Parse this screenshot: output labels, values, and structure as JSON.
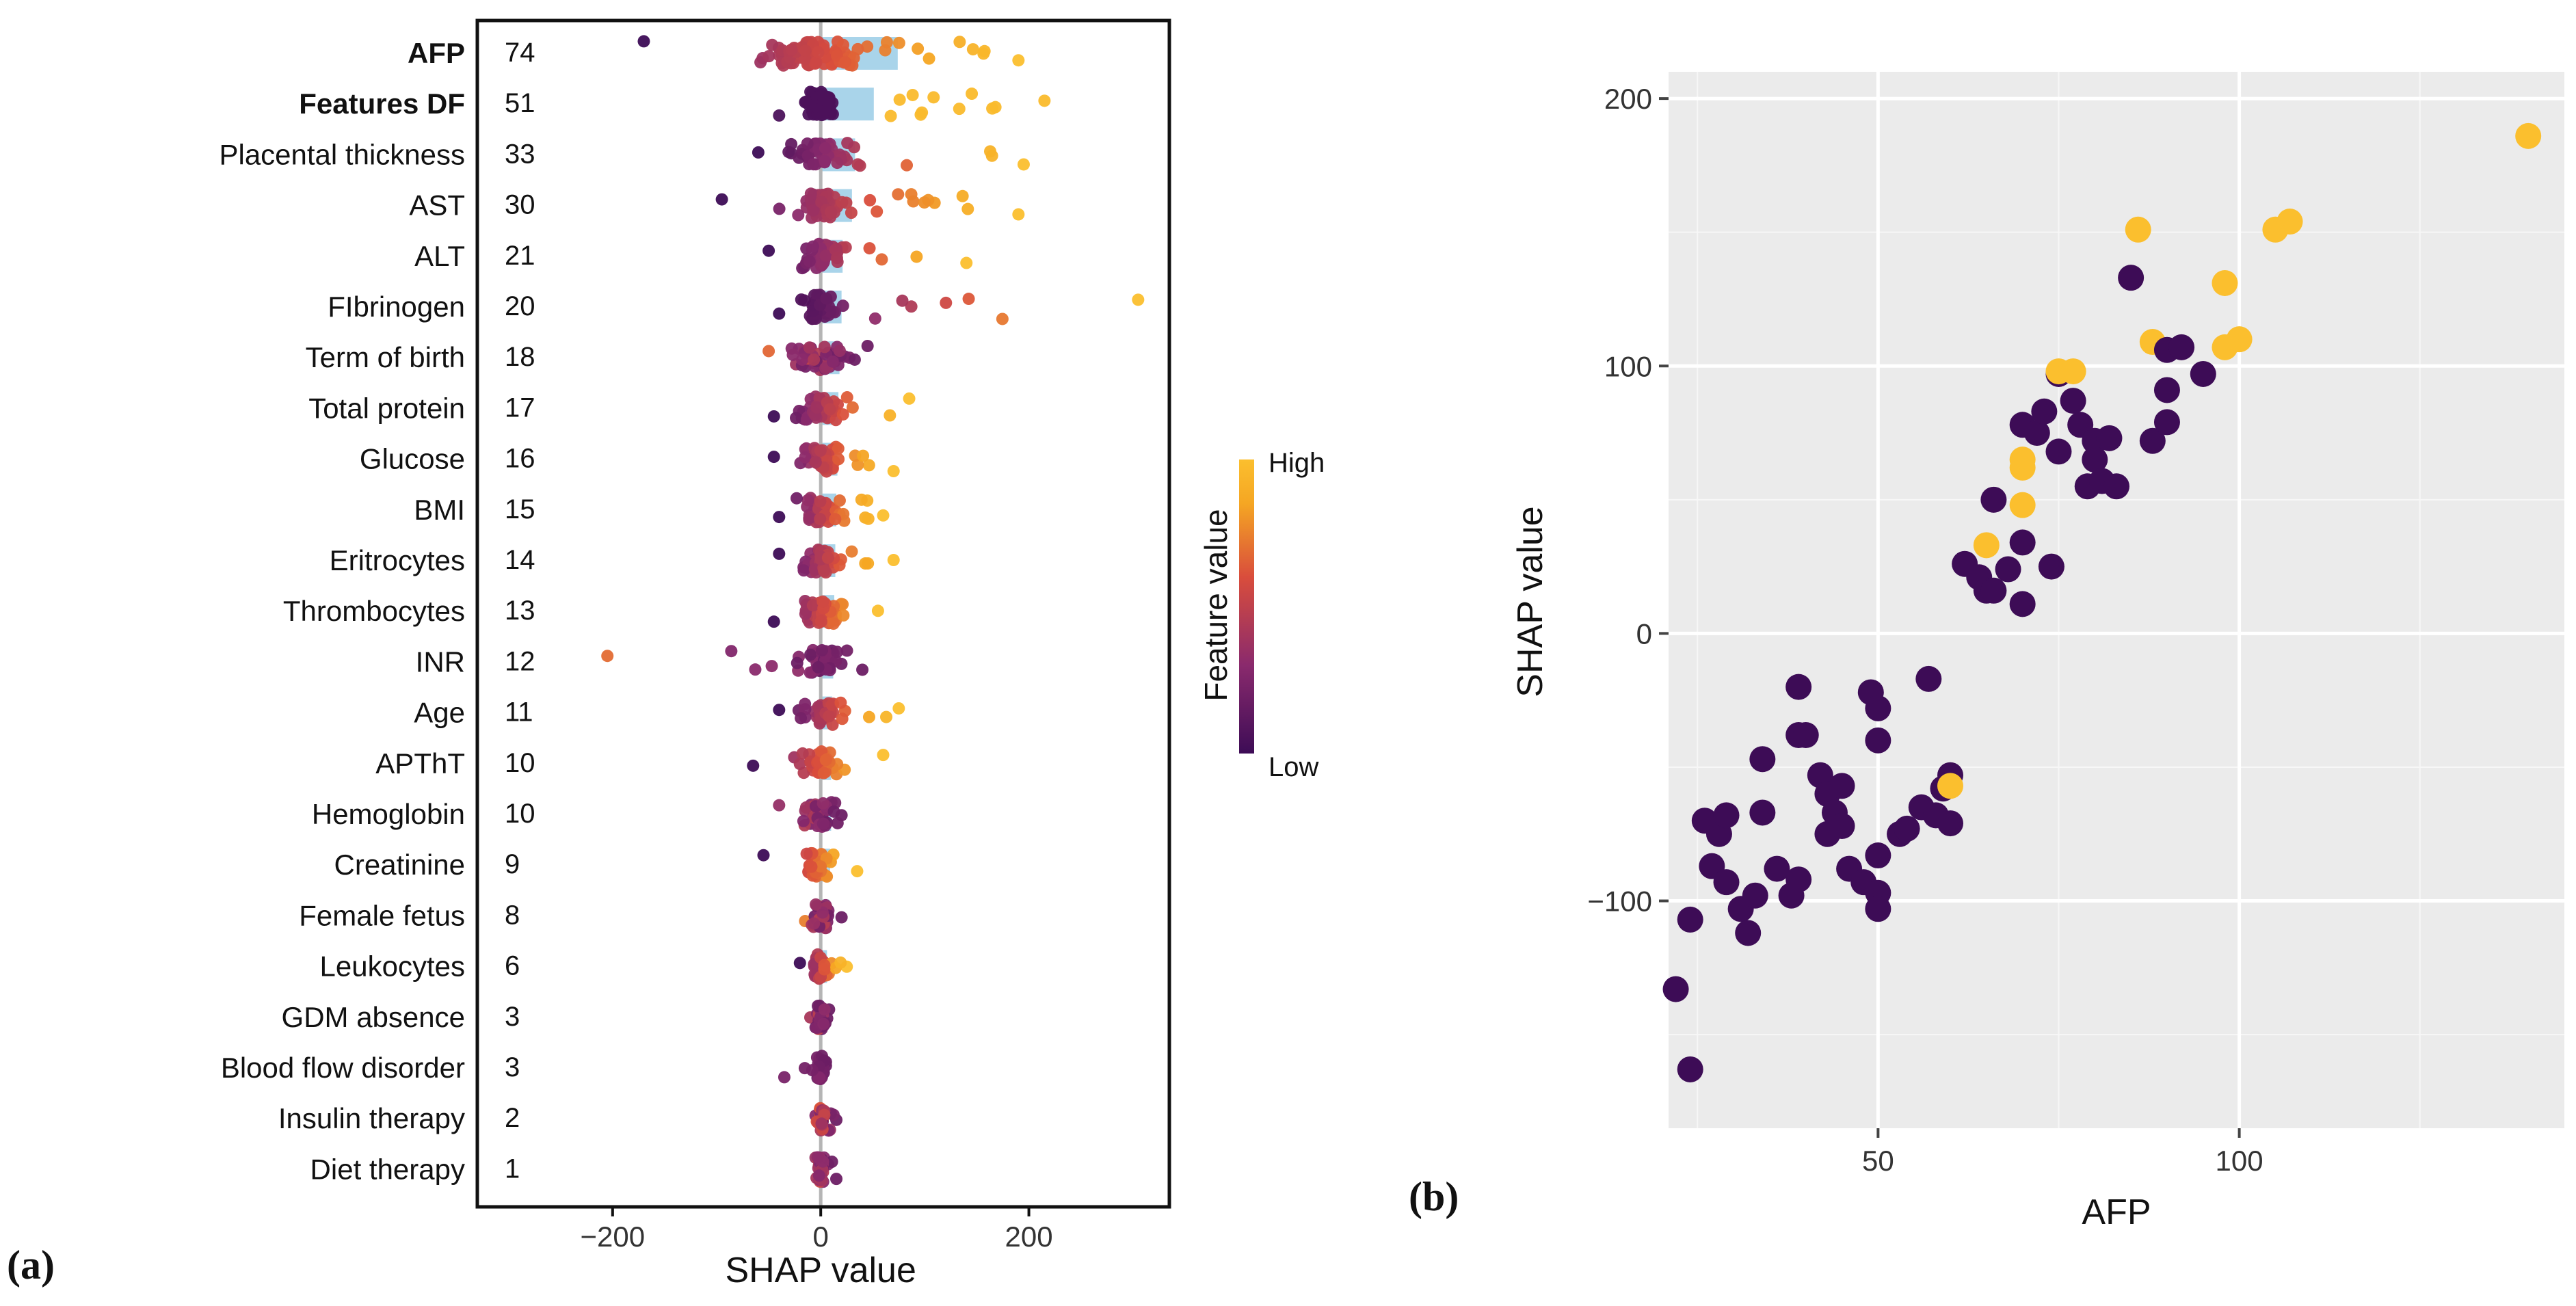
{
  "panel_a_label": "(a)",
  "panel_b_label": "(b)",
  "chart_data": [
    {
      "type": "scatter",
      "subtype": "shap-beeswarm",
      "xlabel": "SHAP value",
      "xticks": [
        -200,
        0,
        200
      ],
      "xlim": [
        -330,
        335
      ],
      "legend": {
        "title": "Feature value",
        "high": "High",
        "low": "Low",
        "colors": [
          "#3d0c56",
          "#8a2a6d",
          "#d94d3c",
          "#f5a623",
          "#fbbf2e"
        ]
      },
      "features": [
        {
          "name": "AFP",
          "importance": 74,
          "bold": true,
          "min": -170,
          "max": 190,
          "spread": 70,
          "bias": 1
        },
        {
          "name": "Features DF",
          "importance": 51,
          "bold": true,
          "min": -40,
          "max": 215,
          "spread": 20,
          "bias": 2
        },
        {
          "name": "Placental thickness",
          "importance": 33,
          "bold": false,
          "min": -60,
          "max": 195,
          "spread": 45,
          "bias": 1
        },
        {
          "name": "AST",
          "importance": 30,
          "bold": false,
          "min": -95,
          "max": 190,
          "spread": 35,
          "bias": 1
        },
        {
          "name": "ALT",
          "importance": 21,
          "bold": false,
          "min": -50,
          "max": 140,
          "spread": 30,
          "bias": 1
        },
        {
          "name": "FIbrinogen",
          "importance": 20,
          "bold": false,
          "min": -40,
          "max": 305,
          "spread": 25,
          "bias": 1
        },
        {
          "name": "Term of birth",
          "importance": 18,
          "bold": false,
          "min": -50,
          "max": 45,
          "spread": 30,
          "bias": -1
        },
        {
          "name": "Total protein",
          "importance": 17,
          "bold": false,
          "min": -45,
          "max": 85,
          "spread": 30,
          "bias": 0
        },
        {
          "name": "Glucose",
          "importance": 16,
          "bold": false,
          "min": -45,
          "max": 70,
          "spread": 30,
          "bias": 0
        },
        {
          "name": "BMI",
          "importance": 15,
          "bold": false,
          "min": -40,
          "max": 60,
          "spread": 28,
          "bias": 0
        },
        {
          "name": "Eritrocytes",
          "importance": 14,
          "bold": false,
          "min": -40,
          "max": 70,
          "spread": 26,
          "bias": 0
        },
        {
          "name": "Thrombocytes",
          "importance": 13,
          "bold": false,
          "min": -45,
          "max": 55,
          "spread": 26,
          "bias": 0
        },
        {
          "name": "INR",
          "importance": 12,
          "bold": false,
          "min": -205,
          "max": 40,
          "spread": 25,
          "bias": -1
        },
        {
          "name": "Age",
          "importance": 11,
          "bold": false,
          "min": -40,
          "max": 75,
          "spread": 22,
          "bias": 0
        },
        {
          "name": "APThT",
          "importance": 10,
          "bold": false,
          "min": -65,
          "max": 60,
          "spread": 22,
          "bias": 0
        },
        {
          "name": "Hemoglobin",
          "importance": 10,
          "bold": false,
          "min": -40,
          "max": 20,
          "spread": 20,
          "bias": -1
        },
        {
          "name": "Creatinine",
          "importance": 9,
          "bold": false,
          "min": -55,
          "max": 35,
          "spread": 18,
          "bias": 0
        },
        {
          "name": "Female fetus",
          "importance": 8,
          "bold": false,
          "min": -15,
          "max": 20,
          "spread": 12,
          "bias": -1
        },
        {
          "name": "Leukocytes",
          "importance": 6,
          "bold": false,
          "min": -20,
          "max": 25,
          "spread": 12,
          "bias": 0
        },
        {
          "name": "GDM absence",
          "importance": 3,
          "bold": false,
          "min": -10,
          "max": 8,
          "spread": 6,
          "bias": -1
        },
        {
          "name": "Blood flow disorder",
          "importance": 3,
          "bold": false,
          "min": -35,
          "max": 5,
          "spread": 6,
          "bias": -1
        },
        {
          "name": "Insulin therapy",
          "importance": 2,
          "bold": false,
          "min": -5,
          "max": 15,
          "spread": 5,
          "bias": -1
        },
        {
          "name": "Diet therapy",
          "importance": 1,
          "bold": false,
          "min": -5,
          "max": 15,
          "spread": 5,
          "bias": -1
        }
      ]
    },
    {
      "type": "scatter",
      "xlabel": "AFP",
      "ylabel": "SHAP value",
      "xlim": [
        21,
        145
      ],
      "ylim": [
        -185,
        210
      ],
      "xticks": [
        50,
        100
      ],
      "yticks": [
        -100,
        0,
        100,
        200
      ],
      "grid": true,
      "colors": {
        "low": "#3d0c56",
        "high": "#fbbf2e"
      },
      "points": [
        {
          "x": 22,
          "y": -133,
          "c": "low"
        },
        {
          "x": 24,
          "y": -163,
          "c": "low"
        },
        {
          "x": 24,
          "y": -107,
          "c": "low"
        },
        {
          "x": 26,
          "y": -70,
          "c": "low"
        },
        {
          "x": 27,
          "y": -87,
          "c": "low"
        },
        {
          "x": 28,
          "y": -75,
          "c": "low"
        },
        {
          "x": 29,
          "y": -68,
          "c": "low"
        },
        {
          "x": 29,
          "y": -93,
          "c": "low"
        },
        {
          "x": 31,
          "y": -103,
          "c": "low"
        },
        {
          "x": 32,
          "y": -112,
          "c": "low"
        },
        {
          "x": 33,
          "y": -98,
          "c": "low"
        },
        {
          "x": 34,
          "y": -67,
          "c": "low"
        },
        {
          "x": 34,
          "y": -47,
          "c": "low"
        },
        {
          "x": 36,
          "y": -88,
          "c": "low"
        },
        {
          "x": 38,
          "y": -98,
          "c": "low"
        },
        {
          "x": 39,
          "y": -20,
          "c": "low"
        },
        {
          "x": 39,
          "y": -38,
          "c": "low"
        },
        {
          "x": 40,
          "y": -38,
          "c": "low"
        },
        {
          "x": 39,
          "y": -92,
          "c": "low"
        },
        {
          "x": 42,
          "y": -53,
          "c": "low"
        },
        {
          "x": 43,
          "y": -60,
          "c": "low"
        },
        {
          "x": 43,
          "y": -75,
          "c": "low"
        },
        {
          "x": 44,
          "y": -67,
          "c": "low"
        },
        {
          "x": 45,
          "y": -72,
          "c": "low"
        },
        {
          "x": 45,
          "y": -57,
          "c": "low"
        },
        {
          "x": 46,
          "y": -88,
          "c": "low"
        },
        {
          "x": 48,
          "y": -93,
          "c": "low"
        },
        {
          "x": 49,
          "y": -22,
          "c": "low"
        },
        {
          "x": 50,
          "y": -28,
          "c": "low"
        },
        {
          "x": 50,
          "y": -40,
          "c": "low"
        },
        {
          "x": 50,
          "y": -83,
          "c": "low"
        },
        {
          "x": 50,
          "y": -97,
          "c": "low"
        },
        {
          "x": 50,
          "y": -103,
          "c": "low"
        },
        {
          "x": 53,
          "y": -75,
          "c": "low"
        },
        {
          "x": 54,
          "y": -73,
          "c": "low"
        },
        {
          "x": 56,
          "y": -65,
          "c": "low"
        },
        {
          "x": 57,
          "y": -17,
          "c": "low"
        },
        {
          "x": 58,
          "y": -68,
          "c": "low"
        },
        {
          "x": 59,
          "y": -58,
          "c": "low"
        },
        {
          "x": 60,
          "y": -53,
          "c": "low"
        },
        {
          "x": 60,
          "y": -71,
          "c": "low"
        },
        {
          "x": 60,
          "y": -57,
          "c": "high"
        },
        {
          "x": 62,
          "y": 26,
          "c": "low"
        },
        {
          "x": 64,
          "y": 21,
          "c": "low"
        },
        {
          "x": 65,
          "y": 16,
          "c": "low"
        },
        {
          "x": 65,
          "y": 33,
          "c": "high"
        },
        {
          "x": 66,
          "y": 50,
          "c": "low"
        },
        {
          "x": 66,
          "y": 16,
          "c": "low"
        },
        {
          "x": 68,
          "y": 24,
          "c": "low"
        },
        {
          "x": 70,
          "y": 11,
          "c": "low"
        },
        {
          "x": 70,
          "y": 34,
          "c": "low"
        },
        {
          "x": 70,
          "y": 48,
          "c": "high"
        },
        {
          "x": 70,
          "y": 62,
          "c": "high"
        },
        {
          "x": 70,
          "y": 65,
          "c": "high"
        },
        {
          "x": 70,
          "y": 78,
          "c": "low"
        },
        {
          "x": 72,
          "y": 75,
          "c": "low"
        },
        {
          "x": 73,
          "y": 83,
          "c": "low"
        },
        {
          "x": 74,
          "y": 25,
          "c": "low"
        },
        {
          "x": 75,
          "y": 68,
          "c": "low"
        },
        {
          "x": 75,
          "y": 97,
          "c": "low"
        },
        {
          "x": 75,
          "y": 98,
          "c": "high"
        },
        {
          "x": 77,
          "y": 98,
          "c": "high"
        },
        {
          "x": 77,
          "y": 87,
          "c": "low"
        },
        {
          "x": 78,
          "y": 78,
          "c": "low"
        },
        {
          "x": 79,
          "y": 55,
          "c": "low"
        },
        {
          "x": 80,
          "y": 72,
          "c": "low"
        },
        {
          "x": 80,
          "y": 65,
          "c": "low"
        },
        {
          "x": 81,
          "y": 57,
          "c": "low"
        },
        {
          "x": 82,
          "y": 73,
          "c": "low"
        },
        {
          "x": 83,
          "y": 55,
          "c": "low"
        },
        {
          "x": 85,
          "y": 133,
          "c": "low"
        },
        {
          "x": 86,
          "y": 151,
          "c": "high"
        },
        {
          "x": 88,
          "y": 109,
          "c": "high"
        },
        {
          "x": 88,
          "y": 72,
          "c": "low"
        },
        {
          "x": 90,
          "y": 79,
          "c": "low"
        },
        {
          "x": 90,
          "y": 91,
          "c": "low"
        },
        {
          "x": 90,
          "y": 106,
          "c": "low"
        },
        {
          "x": 92,
          "y": 107,
          "c": "low"
        },
        {
          "x": 95,
          "y": 97,
          "c": "low"
        },
        {
          "x": 98,
          "y": 131,
          "c": "high"
        },
        {
          "x": 98,
          "y": 107,
          "c": "high"
        },
        {
          "x": 100,
          "y": 110,
          "c": "high"
        },
        {
          "x": 105,
          "y": 151,
          "c": "high"
        },
        {
          "x": 107,
          "y": 154,
          "c": "high"
        },
        {
          "x": 140,
          "y": 186,
          "c": "high"
        }
      ]
    }
  ]
}
